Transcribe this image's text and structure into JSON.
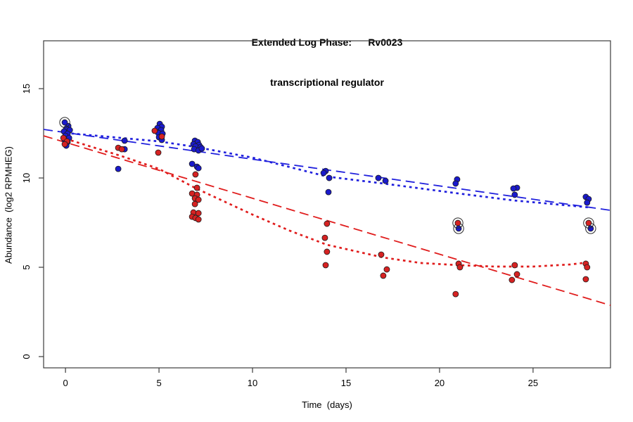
{
  "title": {
    "line1": "Extended Log Phase:      Rv0023",
    "line2": "transcriptional regulator"
  },
  "colors": {
    "blue_point": "#1a1acc",
    "blue_line": "#2020dd",
    "red_point": "#d62222",
    "red_line": "#e01c1c",
    "point_outline": "#1a1a1a",
    "axis": "#3c3c3c",
    "ring": "#2a2a2a"
  },
  "chart_data": {
    "type": "scatter",
    "title": "Extended Log Phase: Rv0023 transcriptional regulator",
    "xlabel": "Time  (days)",
    "ylabel": "Abundance  (log2 RPMHEG)",
    "xlim": [
      -1.17,
      29.14
    ],
    "ylim": [
      -0.63,
      17.68
    ],
    "x_ticks": [
      0,
      5,
      10,
      15,
      20,
      25
    ],
    "y_ticks": [
      0,
      5,
      10,
      15
    ],
    "grid": false,
    "legend": "none",
    "series": [
      {
        "name": "blue-samples",
        "kind": "points",
        "color": "blue_point",
        "points": [
          [
            0.15,
            12.91
          ],
          [
            0.04,
            12.76
          ],
          [
            0.23,
            12.68
          ],
          [
            -0.08,
            12.6
          ],
          [
            0.11,
            12.48
          ],
          [
            0.0,
            12.36
          ],
          [
            0.19,
            12.24
          ],
          [
            -0.04,
            12.13
          ],
          [
            0.11,
            12.01
          ],
          [
            0.04,
            11.81
          ],
          [
            3.16,
            12.09
          ],
          [
            3.16,
            11.61
          ],
          [
            2.82,
            10.51
          ],
          [
            5.04,
            13.03
          ],
          [
            5.15,
            12.87
          ],
          [
            4.92,
            12.8
          ],
          [
            5.11,
            12.68
          ],
          [
            4.96,
            12.52
          ],
          [
            5.19,
            12.48
          ],
          [
            5.0,
            12.28
          ],
          [
            5.15,
            12.13
          ],
          [
            6.92,
            12.09
          ],
          [
            7.07,
            12.01
          ],
          [
            6.84,
            11.89
          ],
          [
            7.14,
            11.85
          ],
          [
            6.95,
            11.77
          ],
          [
            7.22,
            11.73
          ],
          [
            6.88,
            11.61
          ],
          [
            7.11,
            11.54
          ],
          [
            7.29,
            11.65
          ],
          [
            6.77,
            10.79
          ],
          [
            7.03,
            10.63
          ],
          [
            7.11,
            10.55
          ],
          [
            13.91,
            10.39
          ],
          [
            13.8,
            10.28
          ],
          [
            14.1,
            10.0
          ],
          [
            14.06,
            9.21
          ],
          [
            16.73,
            10.0
          ],
          [
            17.11,
            9.84
          ],
          [
            20.94,
            9.92
          ],
          [
            20.86,
            9.69
          ],
          [
            24.14,
            9.45
          ],
          [
            23.95,
            9.41
          ],
          [
            24.02,
            9.06
          ],
          [
            27.82,
            8.94
          ],
          [
            27.97,
            8.82
          ],
          [
            27.89,
            8.62
          ]
        ]
      },
      {
        "name": "red-samples",
        "kind": "points",
        "color": "red_point",
        "points": [
          [
            -0.11,
            12.24
          ],
          [
            0.08,
            12.05
          ],
          [
            -0.04,
            11.89
          ],
          [
            2.82,
            11.69
          ],
          [
            3.01,
            11.61
          ],
          [
            4.77,
            12.64
          ],
          [
            5.15,
            12.32
          ],
          [
            4.96,
            11.42
          ],
          [
            6.95,
            10.2
          ],
          [
            7.03,
            9.45
          ],
          [
            6.77,
            9.13
          ],
          [
            7.03,
            9.06
          ],
          [
            6.92,
            8.86
          ],
          [
            7.11,
            8.78
          ],
          [
            6.92,
            8.54
          ],
          [
            6.84,
            8.07
          ],
          [
            7.11,
            8.03
          ],
          [
            6.77,
            7.83
          ],
          [
            6.95,
            7.76
          ],
          [
            7.11,
            7.68
          ],
          [
            13.98,
            7.44
          ],
          [
            13.87,
            6.65
          ],
          [
            13.98,
            5.87
          ],
          [
            13.91,
            5.12
          ],
          [
            16.88,
            5.71
          ],
          [
            17.18,
            4.88
          ],
          [
            16.99,
            4.53
          ],
          [
            21.02,
            5.2
          ],
          [
            21.09,
            5.0
          ],
          [
            20.86,
            3.5
          ],
          [
            24.02,
            5.12
          ],
          [
            24.14,
            4.61
          ],
          [
            23.87,
            4.29
          ],
          [
            27.82,
            5.2
          ],
          [
            27.89,
            5.0
          ],
          [
            27.82,
            4.33
          ]
        ]
      },
      {
        "name": "blue-flagged",
        "kind": "points",
        "marker": "circled",
        "color": "blue_point",
        "points": [
          [
            -0.04,
            13.11
          ],
          [
            21.02,
            7.17
          ],
          [
            28.08,
            7.17
          ]
        ]
      },
      {
        "name": "red-flagged",
        "kind": "points",
        "marker": "circled",
        "color": "red_point",
        "points": [
          [
            20.98,
            7.48
          ],
          [
            27.97,
            7.48
          ]
        ]
      },
      {
        "name": "blue-linear-fit",
        "kind": "line",
        "dash": "dashed",
        "color": "blue_line",
        "points": [
          [
            -1.17,
            12.72
          ],
          [
            29.14,
            8.19
          ]
        ]
      },
      {
        "name": "red-linear-fit",
        "kind": "line",
        "dash": "dashed",
        "color": "red_line",
        "points": [
          [
            -1.17,
            12.36
          ],
          [
            29.14,
            2.87
          ]
        ]
      },
      {
        "name": "blue-smooth-fit",
        "kind": "line",
        "dash": "dotted",
        "color": "blue_line",
        "points": [
          [
            0,
            12.52
          ],
          [
            3.01,
            12.24
          ],
          [
            5.0,
            12.05
          ],
          [
            6.99,
            11.73
          ],
          [
            10.0,
            11.14
          ],
          [
            13.98,
            10.08
          ],
          [
            16.99,
            9.69
          ],
          [
            21.02,
            9.13
          ],
          [
            23.98,
            8.74
          ],
          [
            28.0,
            8.35
          ]
        ]
      },
      {
        "name": "red-smooth-fit",
        "kind": "line",
        "dash": "dotted",
        "color": "red_line",
        "points": [
          [
            0,
            12.2
          ],
          [
            3.01,
            11.22
          ],
          [
            5.0,
            10.51
          ],
          [
            6.99,
            9.41
          ],
          [
            10.0,
            7.95
          ],
          [
            11.99,
            7.05
          ],
          [
            13.98,
            6.26
          ],
          [
            16.99,
            5.55
          ],
          [
            18.98,
            5.24
          ],
          [
            21.02,
            5.12
          ],
          [
            22.97,
            5.04
          ],
          [
            25.0,
            5.04
          ],
          [
            26.99,
            5.16
          ],
          [
            28.0,
            5.28
          ]
        ]
      }
    ]
  }
}
